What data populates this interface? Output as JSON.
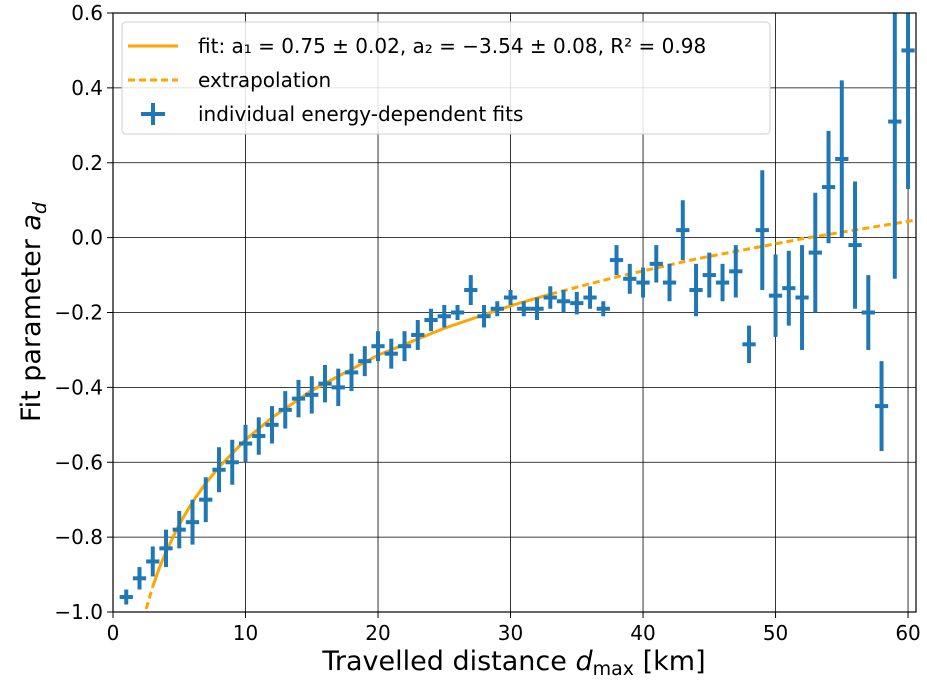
{
  "chart_data": {
    "type": "errorbar",
    "xlabel": {
      "text": "Travelled distance ",
      "symbol": "d",
      "subscript": "max",
      "unit": " [km]"
    },
    "ylabel": {
      "text": "Fit parameter ",
      "symbol": "a",
      "subscript": "d"
    },
    "xlim": [
      0,
      60.6
    ],
    "ylim": [
      -1.0,
      0.6
    ],
    "xticks": [
      0,
      10,
      20,
      30,
      40,
      50,
      60
    ],
    "yticks": [
      {
        "value": -1.0,
        "label": "−1.0"
      },
      {
        "value": -0.8,
        "label": "−0.8"
      },
      {
        "value": -0.6,
        "label": "−0.6"
      },
      {
        "value": -0.4,
        "label": "−0.4"
      },
      {
        "value": -0.2,
        "label": "−0.2"
      },
      {
        "value": 0.0,
        "label": "0.0"
      },
      0.2,
      0.4,
      0.6
    ],
    "grid": true,
    "legend": "upper left",
    "series": [
      {
        "name": "fit: a₁ = 0.75 ± 0.02, a₂ = −3.54 ± 0.08, R² = 0.98",
        "kind": "line",
        "style": "solid",
        "color": "#ffa500",
        "x": [
          3,
          3.5,
          4,
          5,
          6,
          7,
          8,
          10,
          12,
          15,
          20,
          25,
          30,
          33
        ],
        "values": [
          -0.932,
          -0.882,
          -0.839,
          -0.766,
          -0.706,
          -0.656,
          -0.613,
          -0.54,
          -0.481,
          -0.408,
          -0.314,
          -0.242,
          -0.182,
          -0.151
        ]
      },
      {
        "name": "extrapolation",
        "kind": "line",
        "style": "dashed",
        "color": "#ffa500",
        "x": [
          2.5,
          3,
          20,
          33,
          38,
          44,
          52,
          60.6
        ],
        "values": [
          -0.992,
          -0.932,
          null,
          -0.151,
          -0.105,
          -0.057,
          -0.003,
          0.047
        ]
      },
      {
        "name": "individual energy-dependent fits",
        "kind": "errorbar",
        "color": "#1f77b4",
        "xerr": 0.5,
        "x": [
          1,
          2,
          3,
          4,
          5,
          6,
          7,
          8,
          9,
          10,
          11,
          12,
          13,
          14,
          15,
          16,
          17,
          18,
          19,
          20,
          21,
          22,
          23,
          24,
          25,
          26,
          27,
          28,
          29,
          30,
          31,
          32,
          33,
          34,
          35,
          36,
          37,
          38,
          39,
          40,
          41,
          42,
          43,
          44,
          45,
          46,
          47,
          48,
          49,
          50,
          51,
          52,
          53,
          54,
          55,
          56,
          57,
          58,
          59,
          60
        ],
        "values": [
          -0.96,
          -0.91,
          -0.865,
          -0.83,
          -0.78,
          -0.76,
          -0.7,
          -0.62,
          -0.6,
          -0.55,
          -0.53,
          -0.5,
          -0.46,
          -0.43,
          -0.42,
          -0.39,
          -0.4,
          -0.36,
          -0.33,
          -0.29,
          -0.31,
          -0.29,
          -0.26,
          -0.22,
          -0.21,
          -0.2,
          -0.14,
          -0.21,
          -0.19,
          -0.16,
          -0.19,
          -0.19,
          -0.16,
          -0.17,
          -0.175,
          -0.16,
          -0.19,
          -0.06,
          -0.11,
          -0.12,
          -0.07,
          -0.12,
          0.02,
          -0.14,
          -0.1,
          -0.12,
          -0.09,
          -0.285,
          0.02,
          -0.155,
          -0.135,
          -0.16,
          -0.04,
          0.135,
          0.21,
          -0.02,
          -0.2,
          -0.45,
          0.31,
          0.5
        ],
        "errors": [
          0.02,
          0.03,
          0.04,
          0.05,
          0.05,
          0.06,
          0.06,
          0.06,
          0.06,
          0.05,
          0.05,
          0.05,
          0.05,
          0.05,
          0.05,
          0.05,
          0.05,
          0.05,
          0.04,
          0.04,
          0.04,
          0.04,
          0.04,
          0.03,
          0.03,
          0.02,
          0.04,
          0.03,
          0.02,
          0.02,
          0.02,
          0.03,
          0.03,
          0.03,
          0.03,
          0.03,
          0.02,
          0.04,
          0.04,
          0.04,
          0.05,
          0.05,
          0.08,
          0.07,
          0.06,
          0.05,
          0.07,
          0.05,
          0.16,
          0.11,
          0.1,
          0.14,
          0.16,
          0.15,
          0.21,
          0.17,
          0.1,
          0.12,
          0.42,
          0.37
        ]
      }
    ]
  }
}
